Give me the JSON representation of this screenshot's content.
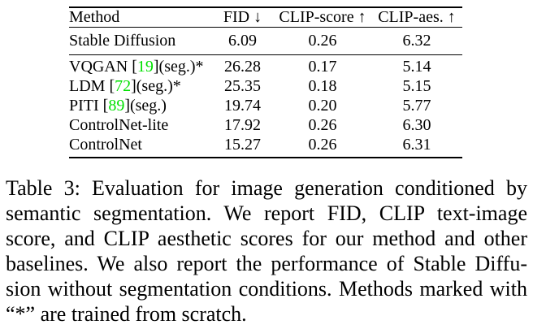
{
  "table": {
    "headers": {
      "method": "Method",
      "fid": "FID ↓",
      "clip_score": "CLIP-score ↑",
      "clip_aes": "CLIP-aes. ↑"
    },
    "baseline_row": {
      "method": "Stable Diffusion",
      "fid": "6.09",
      "clip_score": "0.26",
      "clip_aes": "6.32"
    },
    "rows": [
      {
        "method_pre": "VQGAN [",
        "cite": "19",
        "method_post": "](seg.)*",
        "fid": "26.28",
        "clip_score": "0.17",
        "clip_aes": "5.14"
      },
      {
        "method_pre": "LDM [",
        "cite": "72",
        "method_post": "](seg.)*",
        "fid": "25.35",
        "clip_score": "0.18",
        "clip_aes": "5.15"
      },
      {
        "method_pre": "PITI [",
        "cite": "89",
        "method_post": "](seg.)",
        "fid": "19.74",
        "clip_score": "0.20",
        "clip_aes": "5.77"
      },
      {
        "method_pre": "ControlNet-lite",
        "cite": "",
        "method_post": "",
        "fid": "17.92",
        "clip_score": "0.26",
        "clip_aes": "6.30"
      },
      {
        "method_pre": "ControlNet",
        "cite": "",
        "method_post": "",
        "fid": "15.27",
        "clip_score": "0.26",
        "clip_aes": "6.31"
      }
    ]
  },
  "caption": {
    "lines": [
      "Table 3: Evaluation for image generation conditioned by",
      "semantic segmentation. We report FID, CLIP text-image",
      "score, and CLIP aesthetic scores for our method and other",
      "baselines. We also report the performance of Stable Diffu-",
      "sion without segmentation conditions. Methods marked with",
      "“*” are trained from scratch."
    ]
  },
  "colors": {
    "citation_green": "#00e000",
    "text": "#000000",
    "background": "#ffffff"
  }
}
